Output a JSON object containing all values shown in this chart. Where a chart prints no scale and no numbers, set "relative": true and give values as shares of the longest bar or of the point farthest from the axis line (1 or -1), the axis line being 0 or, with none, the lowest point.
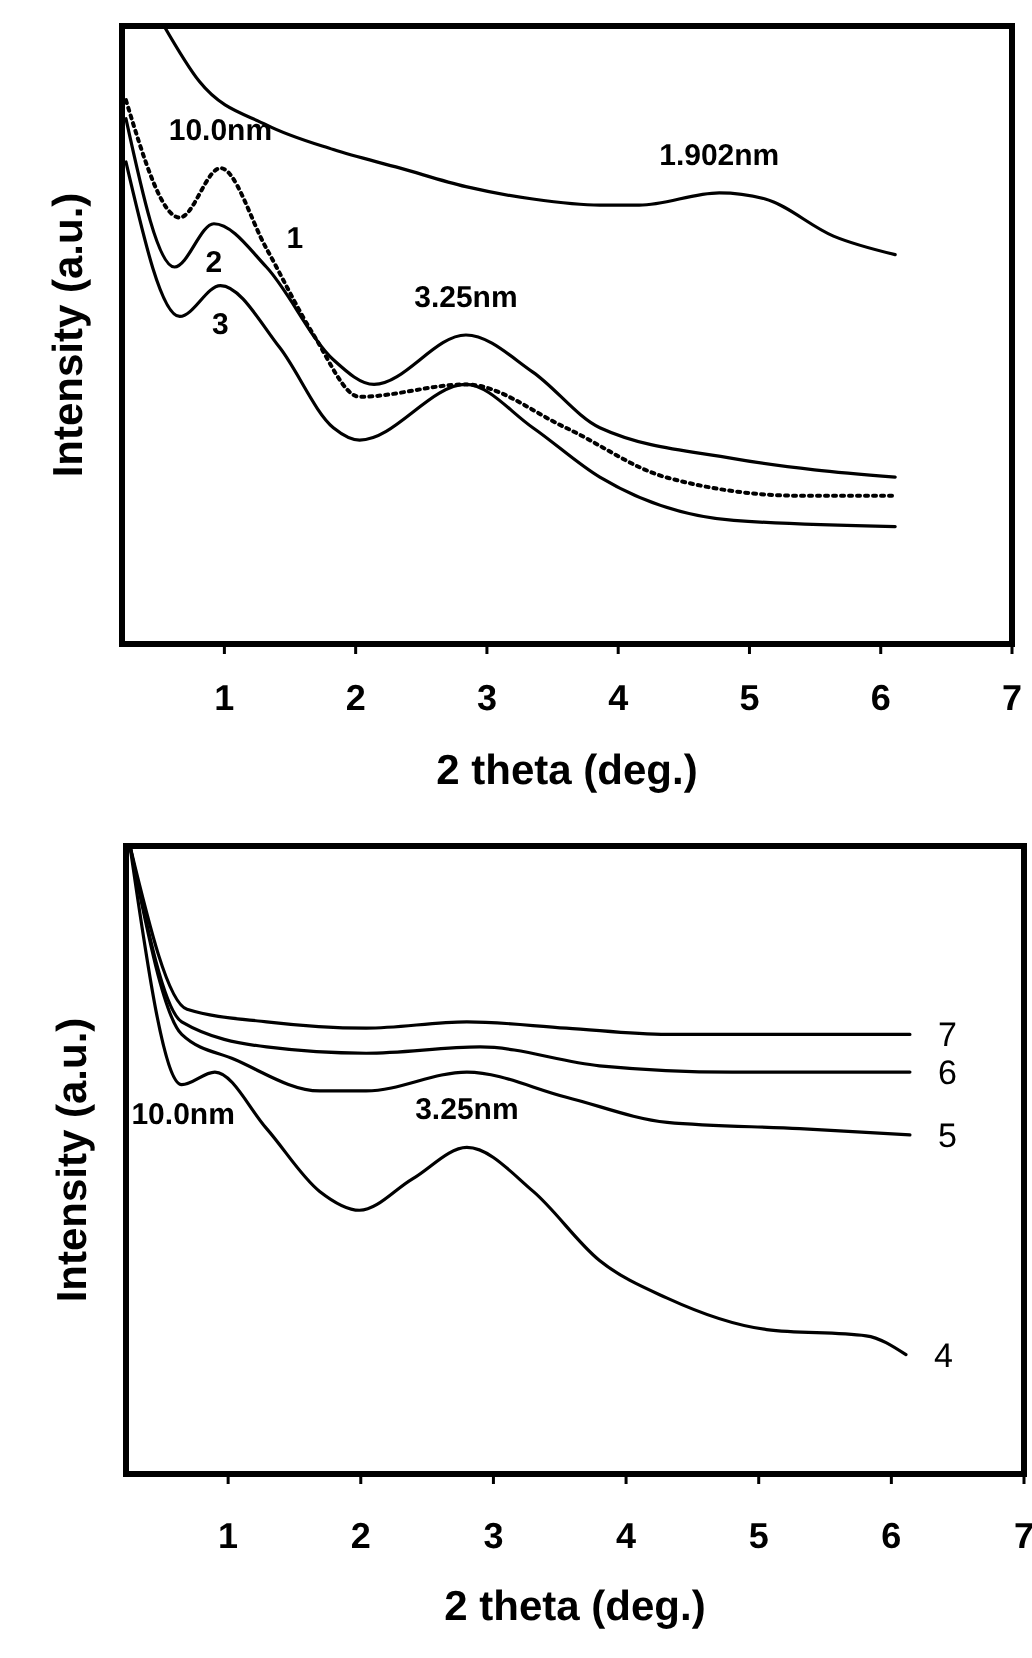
{
  "chart_data": [
    {
      "type": "line",
      "xlabel": "2 theta (deg.)",
      "ylabel": "Intensity (a.u.)",
      "relative": true,
      "xlim": [
        0.22,
        7
      ],
      "xticks": [
        1,
        2,
        3,
        4,
        5,
        6,
        7
      ],
      "legend": false,
      "grid": false,
      "series": [
        {
          "color": "#000000",
          "x": [
            0.54,
            0.81,
            1.32,
            1.83,
            2.34,
            2.84,
            3.35,
            3.86,
            4.16,
            4.77,
            5.12,
            5.64,
            6.11
          ],
          "values": [
            1.0,
            0.91,
            0.84,
            0.8,
            0.77,
            0.74,
            0.72,
            0.71,
            0.71,
            0.73,
            0.72,
            0.66,
            0.63
          ]
        },
        {
          "name": "1",
          "color": "#000000",
          "line_style": "dotted",
          "x": [
            0.25,
            0.66,
            0.97,
            1.32,
            1.68,
            2.03,
            2.84,
            3.6,
            4.36,
            5.38,
            6.11
          ],
          "values": [
            0.88,
            0.69,
            0.77,
            0.64,
            0.5,
            0.4,
            0.42,
            0.35,
            0.27,
            0.24,
            0.24
          ]
        },
        {
          "name": "2",
          "color": "#000000",
          "x": [
            0.25,
            0.62,
            0.92,
            1.32,
            1.83,
            2.14,
            2.84,
            3.35,
            3.86,
            4.88,
            6.11
          ],
          "values": [
            0.85,
            0.61,
            0.68,
            0.61,
            0.46,
            0.42,
            0.5,
            0.44,
            0.35,
            0.3,
            0.27
          ]
        },
        {
          "name": "3",
          "color": "#000000",
          "x": [
            0.25,
            0.66,
            0.97,
            1.42,
            1.83,
            2.03,
            2.84,
            3.35,
            3.86,
            4.88,
            6.11
          ],
          "values": [
            0.78,
            0.53,
            0.58,
            0.48,
            0.35,
            0.33,
            0.42,
            0.35,
            0.27,
            0.2,
            0.19
          ]
        }
      ],
      "annotations": [
        {
          "text": "10.0nm",
          "x": 0.97,
          "y": 0.77
        },
        {
          "text": "3.25nm",
          "x": 2.84,
          "y": 0.5
        },
        {
          "text": "1.902nm",
          "x": 4.77,
          "y": 0.73
        }
      ]
    },
    {
      "type": "line",
      "xlabel": "2 theta (deg.)",
      "ylabel": "Intensity (a.u.)",
      "relative": true,
      "xlim": [
        0.23,
        7
      ],
      "xticks": [
        1,
        2,
        3,
        4,
        5,
        6,
        7
      ],
      "legend": false,
      "grid": false,
      "series": [
        {
          "name": "4",
          "color": "#000000",
          "x": [
            0.26,
            0.65,
            0.9,
            1.29,
            1.69,
            1.99,
            2.39,
            2.8,
            3.3,
            3.8,
            4.31,
            5.06,
            5.81,
            6.11
          ],
          "values": [
            1.0,
            0.62,
            0.64,
            0.55,
            0.45,
            0.42,
            0.47,
            0.52,
            0.45,
            0.34,
            0.28,
            0.23,
            0.22,
            0.19
          ]
        },
        {
          "name": "5",
          "color": "#000000",
          "x": [
            0.26,
            0.65,
            1.05,
            1.69,
            2.04,
            2.8,
            3.55,
            4.31,
            5.31,
            6.14
          ],
          "values": [
            1.0,
            0.7,
            0.66,
            0.61,
            0.61,
            0.64,
            0.6,
            0.56,
            0.55,
            0.54
          ]
        },
        {
          "name": "6",
          "color": "#000000",
          "x": [
            0.26,
            0.65,
            1.29,
            2.04,
            2.9,
            3.8,
            4.8,
            6.14
          ],
          "values": [
            1.0,
            0.72,
            0.68,
            0.67,
            0.68,
            0.65,
            0.64,
            0.64
          ]
        },
        {
          "name": "7",
          "color": "#000000",
          "x": [
            0.26,
            0.69,
            1.29,
            2.04,
            2.8,
            3.55,
            4.31,
            6.14
          ],
          "values": [
            1.0,
            0.74,
            0.72,
            0.71,
            0.72,
            0.71,
            0.7,
            0.7
          ]
        }
      ],
      "annotations": [
        {
          "text": "10.0nm",
          "x": 0.9,
          "y": 0.64
        },
        {
          "text": "3.25nm",
          "x": 2.8,
          "y": 0.52
        }
      ]
    }
  ]
}
